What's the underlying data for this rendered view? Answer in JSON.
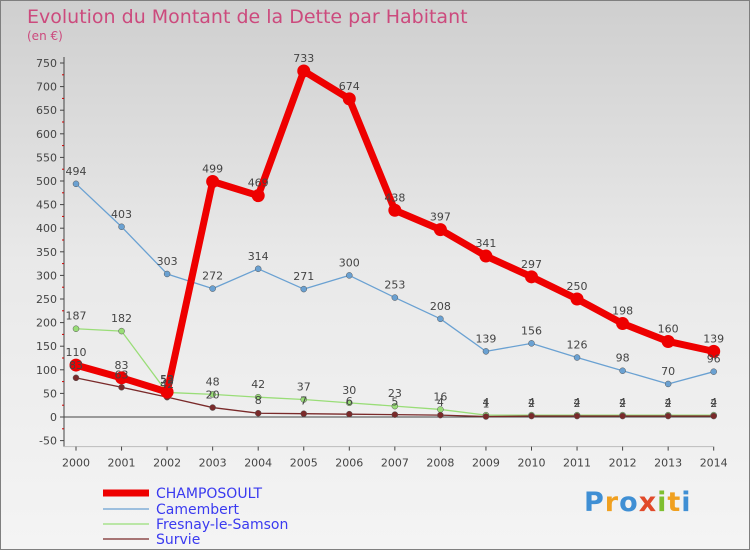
{
  "title": "Evolution du Montant de la Dette par Habitant",
  "subtitle": "(en €)",
  "logo": {
    "text": "Proxiti",
    "letter_colors": [
      "#3f8fd4",
      "#f0a020",
      "#3f8fd4",
      "#e14a2a",
      "#7fbf30",
      "#f0a020",
      "#3f8fd4"
    ]
  },
  "chart_data": {
    "type": "line",
    "title": "Evolution du Montant de la Dette par Habitant",
    "ylabel": "(en €)",
    "xlabel": "",
    "x": [
      "2000",
      "2001",
      "2002",
      "2003",
      "2004",
      "2005",
      "2006",
      "2007",
      "2008",
      "2009",
      "2010",
      "2011",
      "2012",
      "2013",
      "2014"
    ],
    "ylim": [
      -50,
      750
    ],
    "yticks": [
      -50,
      0,
      50,
      100,
      150,
      200,
      250,
      300,
      350,
      400,
      450,
      500,
      550,
      600,
      650,
      700,
      750
    ],
    "grid": false,
    "legend": "bottom-left",
    "series": [
      {
        "name": "CHAMPOSOULT",
        "color": "#ee0000",
        "values": [
          110,
          83,
          53,
          499,
          469,
          733,
          674,
          438,
          397,
          341,
          297,
          250,
          198,
          160,
          139
        ],
        "labels": [
          "110",
          "83",
          "53",
          "499",
          "469",
          "733",
          "674",
          "438",
          "397",
          "341",
          "297",
          "250",
          "198",
          "160",
          "139"
        ]
      },
      {
        "name": "Camembert",
        "color": "#6aa1d2",
        "values": [
          494,
          403,
          303,
          272,
          314,
          271,
          300,
          253,
          208,
          139,
          156,
          126,
          98,
          70,
          96
        ],
        "labels": [
          "494",
          "403",
          "303",
          "272",
          "314",
          "271",
          "300",
          "253",
          "208",
          "139",
          "156",
          "126",
          "98",
          "70",
          "96"
        ]
      },
      {
        "name": "Fresnay-le-Samson",
        "color": "#99dd77",
        "values": [
          187,
          182,
          52,
          48,
          42,
          37,
          30,
          23,
          16,
          4,
          4,
          4,
          4,
          4,
          4
        ],
        "labels": [
          "187",
          "182",
          "52",
          "48",
          "42",
          "37",
          "30",
          "23",
          "16",
          "4",
          "4",
          "4",
          "4",
          "4",
          "4"
        ]
      },
      {
        "name": "Survie",
        "color": "#7a2a2a",
        "values": [
          83,
          63,
          42,
          20,
          8,
          7,
          6,
          5,
          4,
          1,
          2,
          2,
          2,
          2,
          2
        ],
        "labels": [
          "83",
          "63",
          "42",
          "20",
          "8",
          "7",
          "6",
          "5",
          "4",
          "1",
          "2",
          "2",
          "2",
          "2",
          "2"
        ]
      }
    ]
  }
}
